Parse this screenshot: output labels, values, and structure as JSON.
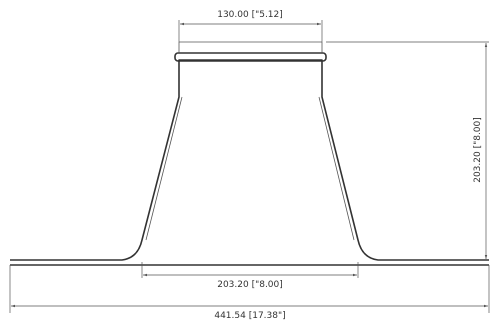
{
  "drawing": {
    "dimensions": {
      "top_diameter": "130.00 [\"5.12]",
      "height": "203.20 [\"8.00]",
      "base_diameter": "203.20 [\"8.00]",
      "flange_width": "441.54 [17.38\"]"
    },
    "colors": {
      "line": "#333333",
      "dimension_line": "#555555",
      "background": "#ffffff"
    }
  }
}
